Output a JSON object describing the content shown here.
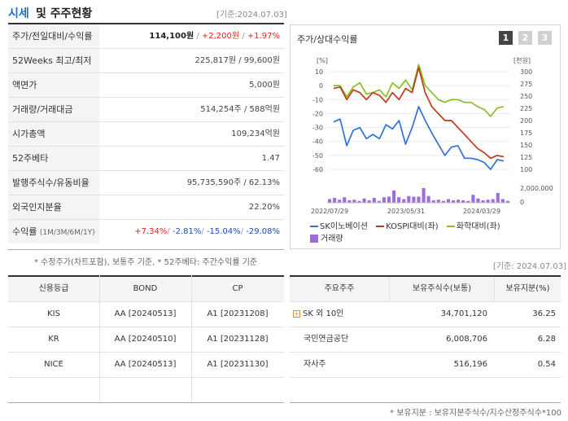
{
  "header": {
    "title_part1": "시세",
    "title_part2": "및 주주현황",
    "date": "[기준:2024.07.03]"
  },
  "quote_rows": [
    {
      "label": "주가/전일대비/수익률",
      "price": "114,100원",
      "sep1": " / ",
      "change": "+2,200원",
      "sep2": " / ",
      "rate": "+1.97%"
    },
    {
      "label": "52Weeks 최고/최저",
      "value": "225,817원 / 99,600원"
    },
    {
      "label": "액면가",
      "value": "5,000원"
    },
    {
      "label": "거래량/거래대금",
      "value": "514,254주 / 588억원"
    },
    {
      "label": "시가총액",
      "value": "109,234억원"
    },
    {
      "label": "52주베타",
      "value": "1.47"
    },
    {
      "label": "발행주식수/유동비율",
      "value": "95,735,590주 / 62.13%"
    },
    {
      "label": "외국인지분율",
      "value": "22.20%"
    },
    {
      "label": "수익률",
      "label_sub": "(1M/3M/6M/1Y)",
      "r1": "+7.34%",
      "r2": "-2.81%",
      "r3": "-15.04%",
      "r4": "-29.08%",
      "slash": "/ "
    }
  ],
  "note1": "* 수정주가(차트포함), 보통주 기준, * 52주베타: 주간수익률 기준",
  "chart_panel": {
    "title": "주가/상대수익률",
    "period_buttons": [
      "1",
      "2",
      "3"
    ],
    "active_period": "1"
  },
  "chart_data": {
    "type": "line",
    "left_axis_unit": "[%]",
    "right_axis_unit": "[천원]",
    "left_ticks": [
      10,
      0,
      -10,
      -20,
      -30,
      -40,
      -50,
      -60
    ],
    "right_ticks": [
      300,
      275,
      250,
      225,
      200,
      175,
      150,
      125,
      100
    ],
    "volume_ticks": [
      "2,000,000",
      "0"
    ],
    "ylim_left": [
      -60,
      10
    ],
    "ylim_right": [
      100,
      300
    ],
    "x_labels": [
      "2022/07/29",
      "2023/05/31",
      "2024/03/29"
    ],
    "series": [
      {
        "name": "SK이노베이션",
        "color": "#2f72d6",
        "values": [
          -26,
          -24,
          -43,
          -32,
          -30,
          -38,
          -35,
          -38,
          -28,
          -31,
          -25,
          -42,
          -30,
          -15,
          -25,
          -34,
          -42,
          -50,
          -44,
          -43,
          -52,
          -52,
          -53,
          -55,
          -60,
          -53,
          -54
        ]
      },
      {
        "name": "KOSPI대비(좌)",
        "color": "#c0391b",
        "values": [
          -2,
          -1,
          -10,
          -3,
          -5,
          -10,
          -5,
          -7,
          -12,
          -5,
          -10,
          -2,
          -5,
          13,
          -5,
          -15,
          -20,
          -25,
          -25,
          -30,
          -35,
          -40,
          -45,
          -48,
          -52,
          -50,
          -51
        ]
      },
      {
        "name": "화학대비(좌)",
        "color": "#8bbf22",
        "values": [
          0,
          0,
          -8,
          -1,
          2,
          -6,
          -5,
          -3,
          -8,
          2,
          -2,
          4,
          -3,
          15,
          0,
          -5,
          -10,
          -12,
          -10,
          -10,
          -12,
          -12,
          -15,
          -17,
          -22,
          -16,
          -15
        ]
      }
    ],
    "volume": {
      "name": "거래량",
      "color": "#9c6ce0",
      "values": [
        0.6,
        0.8,
        0.5,
        0.9,
        0.4,
        0.5,
        0.3,
        0.7,
        0.4,
        0.8,
        0.3,
        0.9,
        1.0,
        2.0,
        0.9,
        0.6,
        1.1,
        1.0,
        1.0,
        2.4,
        1.1,
        0.4,
        0.5,
        0.3,
        0.6,
        0.4,
        0.5,
        0.4,
        0.3,
        1.3,
        0.7,
        0.4,
        0.5,
        0.6,
        1.6,
        0.6,
        0.3
      ]
    }
  },
  "date2": "[기준: 2024.07.03]",
  "credit_table": {
    "headers": [
      "신용등급",
      "BOND",
      "CP"
    ],
    "rows": [
      [
        "KIS",
        "AA  [20240513]",
        "A1  [20231208]"
      ],
      [
        "KR",
        "AA  [20240510]",
        "A1  [20231128]"
      ],
      [
        "NICE",
        "AA  [20240513]",
        "A1  [20231130]"
      ]
    ]
  },
  "holder_table": {
    "headers": [
      "주요주주",
      "보유주식수(보통)",
      "보유지분(%)"
    ],
    "rows": [
      [
        "SK 외 10인",
        "34,701,120",
        "36.25"
      ],
      [
        "국민연금공단",
        "6,008,706",
        "6.28"
      ],
      [
        "자사주",
        "516,196",
        "0.54"
      ]
    ]
  },
  "note2": "* 보유지분 : 보유지분주식수/지수산정주식수*100",
  "colors": {
    "accent": "#1f6fc5",
    "up": "#e2231a",
    "down": "#1a4fb5"
  }
}
